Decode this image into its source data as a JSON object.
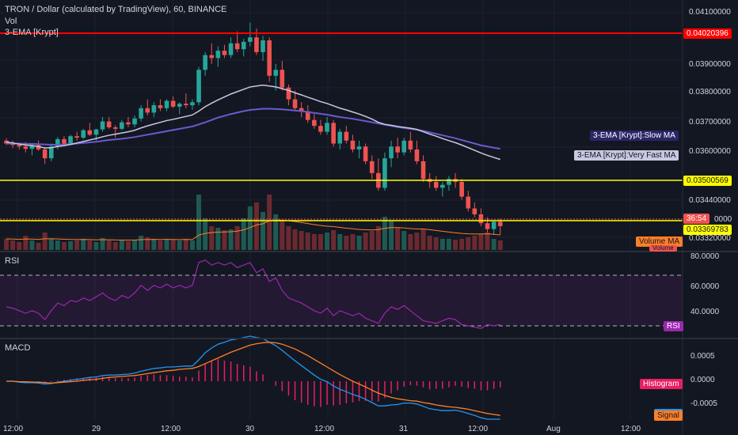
{
  "header": {
    "title": "TRON / Dollar (calculated by TradingView), 60, BINANCE",
    "vol_label": "Vol",
    "ema_label": "3-EMA [Krypt]"
  },
  "price_axis": {
    "ticks": [
      "0.04100000",
      "0.03900000",
      "0.03800000",
      "0.03700000",
      "0.03600000",
      "0.03440000",
      "0.03320000"
    ]
  },
  "price_tags": {
    "red_level": "0.04020396",
    "yellow_level": "0.03500569",
    "timer": "36:54",
    "last_price": "0.03369783",
    "price_partial": "0000"
  },
  "legend_tags": {
    "slow_ma": "3-EMA [Krypt]:Slow MA",
    "fast_ma": "3-EMA [Krypt]:Very Fast MA",
    "volume_ma": "Volume MA",
    "volume": "Volume"
  },
  "rsi": {
    "label": "RSI",
    "ticks": [
      "80.0000",
      "60.0000",
      "40.0000"
    ],
    "tag": "RSI"
  },
  "macd": {
    "label": "MACD",
    "ticks": [
      "0.0005",
      "0.0000",
      "-0.0005"
    ],
    "histogram_tag": "Histogram",
    "signal_tag": "Signal"
  },
  "time_axis": {
    "labels": [
      "12:00",
      "29",
      "12:00",
      "30",
      "12:00",
      "31",
      "12:00",
      "Aug",
      "12:00"
    ]
  },
  "colors": {
    "background": "#131722",
    "up": "#26a69a",
    "down": "#ef5350",
    "red_line": "#ff0000",
    "yellow_line": "#ffff00",
    "slow_ma": "#6a5acd",
    "fast_ma": "#c8c8e0",
    "rsi_line": "#9c27b0",
    "macd_line": "#2196f3",
    "signal_line": "#ff7f27",
    "hist": "#e91e63"
  },
  "chart_data": {
    "type": "candlestick",
    "symbol": "TRXUSD",
    "interval": "60",
    "price_range": [
      0.033,
      0.0411
    ],
    "levels": [
      0.04020396,
      0.03500569,
      0.03369783
    ],
    "candles": [
      [
        0.0366,
        0.03668,
        0.03645,
        0.0365
      ],
      [
        0.0365,
        0.0366,
        0.03635,
        0.03645
      ],
      [
        0.03645,
        0.03652,
        0.0363,
        0.0364
      ],
      [
        0.0364,
        0.03655,
        0.0362,
        0.03632
      ],
      [
        0.03632,
        0.0365,
        0.0361,
        0.03645
      ],
      [
        0.03645,
        0.0366,
        0.03625,
        0.0363
      ],
      [
        0.0363,
        0.03638,
        0.0358,
        0.036
      ],
      [
        0.036,
        0.0365,
        0.0359,
        0.0364
      ],
      [
        0.0364,
        0.03672,
        0.0363,
        0.03665
      ],
      [
        0.03665,
        0.03675,
        0.0364,
        0.0365
      ],
      [
        0.0365,
        0.0368,
        0.03645,
        0.03675
      ],
      [
        0.03675,
        0.0369,
        0.0366,
        0.0367
      ],
      [
        0.0367,
        0.037,
        0.03665,
        0.03695
      ],
      [
        0.03695,
        0.0372,
        0.03675,
        0.0368
      ],
      [
        0.0368,
        0.037,
        0.0366,
        0.03698
      ],
      [
        0.03698,
        0.0374,
        0.0369,
        0.03725
      ],
      [
        0.03725,
        0.0374,
        0.037,
        0.03705
      ],
      [
        0.03705,
        0.03712,
        0.0367,
        0.037
      ],
      [
        0.037,
        0.0373,
        0.03695,
        0.03722
      ],
      [
        0.03722,
        0.0374,
        0.03705,
        0.03715
      ],
      [
        0.03715,
        0.03745,
        0.03705,
        0.03735
      ],
      [
        0.03735,
        0.0378,
        0.03725,
        0.0377
      ],
      [
        0.0377,
        0.038,
        0.03745,
        0.03755
      ],
      [
        0.03755,
        0.0379,
        0.0374,
        0.0378
      ],
      [
        0.0378,
        0.038,
        0.0376,
        0.0377
      ],
      [
        0.0377,
        0.038,
        0.0376,
        0.03795
      ],
      [
        0.03795,
        0.0381,
        0.0377,
        0.03775
      ],
      [
        0.03775,
        0.0379,
        0.0375,
        0.03785
      ],
      [
        0.03785,
        0.0382,
        0.0377,
        0.0378
      ],
      [
        0.0378,
        0.038,
        0.03765,
        0.0379
      ],
      [
        0.0379,
        0.0391,
        0.0378,
        0.039
      ],
      [
        0.039,
        0.0396,
        0.0388,
        0.0395
      ],
      [
        0.0395,
        0.0399,
        0.0392,
        0.0394
      ],
      [
        0.0394,
        0.0398,
        0.0391,
        0.03965
      ],
      [
        0.03965,
        0.03985,
        0.0394,
        0.0395
      ],
      [
        0.0395,
        0.0401,
        0.0394,
        0.0399
      ],
      [
        0.0399,
        0.0403,
        0.0396,
        0.0397
      ],
      [
        0.0397,
        0.04005,
        0.03945,
        0.03995
      ],
      [
        0.03995,
        0.0406,
        0.0398,
        0.0401
      ],
      [
        0.0401,
        0.0404,
        0.0395,
        0.0396
      ],
      [
        0.0396,
        0.04015,
        0.0393,
        0.04
      ],
      [
        0.04,
        0.0401,
        0.0386,
        0.0388
      ],
      [
        0.0388,
        0.0392,
        0.0383,
        0.039
      ],
      [
        0.039,
        0.0393,
        0.0383,
        0.0384
      ],
      [
        0.0384,
        0.0385,
        0.0378,
        0.038
      ],
      [
        0.038,
        0.0383,
        0.0376,
        0.0377
      ],
      [
        0.0377,
        0.0379,
        0.0374,
        0.0376
      ],
      [
        0.0376,
        0.0378,
        0.0372,
        0.0373
      ],
      [
        0.0373,
        0.0375,
        0.037,
        0.0371
      ],
      [
        0.0371,
        0.0373,
        0.0368,
        0.0369
      ],
      [
        0.0369,
        0.0374,
        0.0368,
        0.0372
      ],
      [
        0.0372,
        0.0373,
        0.0364,
        0.0365
      ],
      [
        0.0365,
        0.037,
        0.0363,
        0.0369
      ],
      [
        0.0369,
        0.0371,
        0.0365,
        0.0366
      ],
      [
        0.0366,
        0.0368,
        0.0362,
        0.0363
      ],
      [
        0.0363,
        0.0366,
        0.036,
        0.0364
      ],
      [
        0.0364,
        0.0365,
        0.0358,
        0.0359
      ],
      [
        0.0359,
        0.0361,
        0.0353,
        0.0355
      ],
      [
        0.0355,
        0.036,
        0.0349,
        0.035
      ],
      [
        0.035,
        0.0362,
        0.0349,
        0.036
      ],
      [
        0.036,
        0.0366,
        0.0357,
        0.0364
      ],
      [
        0.0364,
        0.0367,
        0.036,
        0.0362
      ],
      [
        0.0362,
        0.0367,
        0.0361,
        0.0366
      ],
      [
        0.0366,
        0.0369,
        0.0362,
        0.0363
      ],
      [
        0.0363,
        0.0366,
        0.0358,
        0.0359
      ],
      [
        0.0359,
        0.0361,
        0.0352,
        0.0353
      ],
      [
        0.0353,
        0.0355,
        0.035,
        0.0352
      ],
      [
        0.0352,
        0.0354,
        0.0349,
        0.035
      ],
      [
        0.035,
        0.0352,
        0.0347,
        0.0351
      ],
      [
        0.0351,
        0.0354,
        0.0349,
        0.0353
      ],
      [
        0.0353,
        0.0355,
        0.035,
        0.0352
      ],
      [
        0.0352,
        0.0353,
        0.0346,
        0.0347
      ],
      [
        0.0347,
        0.0349,
        0.0342,
        0.0343
      ],
      [
        0.0343,
        0.0345,
        0.034,
        0.0341
      ],
      [
        0.0341,
        0.0343,
        0.0337,
        0.0338
      ],
      [
        0.0338,
        0.034,
        0.0334,
        0.0336
      ],
      [
        0.0336,
        0.0339,
        0.0334,
        0.03385
      ],
      [
        0.03385,
        0.03395,
        0.0334,
        0.0337
      ]
    ],
    "volume": [
      14,
      12,
      10,
      18,
      12,
      9,
      22,
      14,
      12,
      10,
      11,
      12,
      14,
      12,
      10,
      15,
      12,
      10,
      12,
      11,
      13,
      18,
      16,
      14,
      12,
      14,
      13,
      12,
      14,
      12,
      70,
      40,
      30,
      28,
      25,
      26,
      30,
      40,
      55,
      60,
      48,
      70,
      45,
      38,
      30,
      26,
      24,
      22,
      20,
      20,
      22,
      25,
      20,
      18,
      20,
      18,
      22,
      24,
      30,
      42,
      36,
      28,
      24,
      20,
      22,
      26,
      18,
      16,
      14,
      14,
      13,
      14,
      16,
      18,
      20,
      22,
      14,
      12
    ],
    "slow_ma": [
      0.0365,
      0.0365,
      0.0365,
      0.03649,
      0.03649,
      0.03648,
      0.03647,
      0.03646,
      0.03646,
      0.03647,
      0.03648,
      0.0365,
      0.03652,
      0.03654,
      0.03656,
      0.03659,
      0.03662,
      0.03664,
      0.03666,
      0.03669,
      0.03672,
      0.03676,
      0.0368,
      0.03684,
      0.03688,
      0.03692,
      0.03696,
      0.037,
      0.03704,
      0.03708,
      0.03715,
      0.03722,
      0.0373,
      0.03738,
      0.03744,
      0.0375,
      0.03755,
      0.0376,
      0.03764,
      0.03766,
      0.03768,
      0.03768,
      0.03767,
      0.03766,
      0.03764,
      0.03762,
      0.0376,
      0.03757,
      0.03754,
      0.03751,
      0.03748,
      0.03744,
      0.0374,
      0.03737,
      0.03734,
      0.0373,
      0.03726,
      0.03722,
      0.03718,
      0.03714,
      0.0371,
      0.03706,
      0.03703,
      0.037,
      0.03697,
      0.03693,
      0.03688,
      0.03683,
      0.03678,
      0.03673,
      0.03668,
      0.03662,
      0.03656,
      0.0365,
      0.03644,
      0.0364,
      0.03636,
      0.03632
    ],
    "fast_ma": [
      0.03655,
      0.03652,
      0.03648,
      0.03645,
      0.03643,
      0.0364,
      0.03635,
      0.03636,
      0.0364,
      0.03643,
      0.03647,
      0.03652,
      0.03657,
      0.03662,
      0.03667,
      0.03673,
      0.03678,
      0.03682,
      0.03686,
      0.0369,
      0.03695,
      0.03703,
      0.0371,
      0.03716,
      0.03722,
      0.03728,
      0.03732,
      0.03737,
      0.03742,
      0.03747,
      0.0376,
      0.03775,
      0.03787,
      0.03798,
      0.03808,
      0.03818,
      0.03826,
      0.03834,
      0.03842,
      0.03845,
      0.03848,
      0.03845,
      0.03842,
      0.03836,
      0.0383,
      0.03822,
      0.03815,
      0.03807,
      0.038,
      0.03792,
      0.03786,
      0.03778,
      0.0377,
      0.03764,
      0.03757,
      0.0375,
      0.03742,
      0.03733,
      0.03722,
      0.03715,
      0.03712,
      0.03708,
      0.03705,
      0.03702,
      0.03698,
      0.0369,
      0.03682,
      0.03675,
      0.03667,
      0.0366,
      0.03653,
      0.03645,
      0.03636,
      0.03627,
      0.03618,
      0.0361,
      0.03603,
      0.03596
    ],
    "rsi": [
      45,
      44,
      42,
      40,
      42,
      40,
      35,
      42,
      48,
      46,
      50,
      49,
      52,
      50,
      53,
      56,
      52,
      50,
      54,
      52,
      56,
      62,
      58,
      62,
      60,
      63,
      60,
      62,
      60,
      62,
      80,
      82,
      78,
      80,
      78,
      80,
      76,
      78,
      80,
      72,
      75,
      65,
      68,
      58,
      52,
      50,
      48,
      45,
      42,
      40,
      44,
      38,
      42,
      40,
      38,
      40,
      36,
      34,
      32,
      40,
      45,
      43,
      46,
      42,
      38,
      34,
      33,
      32,
      34,
      36,
      35,
      31,
      30,
      29,
      28,
      31,
      30,
      31
    ],
    "macd": [
      0.0,
      0.0,
      -2e-05,
      -3e-05,
      -3e-05,
      -4e-05,
      -6e-05,
      -5e-05,
      -2e-05,
      0.0,
      2e-05,
      4e-05,
      6e-05,
      8e-05,
      9e-05,
      0.00012,
      0.00013,
      0.00013,
      0.00014,
      0.00015,
      0.00017,
      0.00021,
      0.00024,
      0.00027,
      0.00028,
      0.0003,
      0.0003,
      0.00031,
      0.00032,
      0.00032,
      0.00045,
      0.0006,
      0.0007,
      0.00078,
      0.00082,
      0.00087,
      0.00089,
      0.00092,
      0.00095,
      0.00092,
      0.0009,
      0.00082,
      0.00075,
      0.00065,
      0.00054,
      0.00043,
      0.00033,
      0.00023,
      0.00013,
      4e-05,
      -1e-05,
      -0.0001,
      -0.00017,
      -0.00022,
      -0.00028,
      -0.00032,
      -0.00038,
      -0.00045,
      -0.00052,
      -0.00052,
      -0.0005,
      -0.00049,
      -0.00046,
      -0.00046,
      -0.00048,
      -0.00053,
      -0.00058,
      -0.0006,
      -0.00062,
      -0.00062,
      -0.00061,
      -0.00064,
      -0.00068,
      -0.00072,
      -0.00077,
      -0.0008,
      -0.0008,
      -0.0008
    ],
    "signal": [
      0.0,
      0.0,
      -1e-05,
      -1e-05,
      -2e-05,
      -2e-05,
      -3e-05,
      -4e-05,
      -3e-05,
      -2e-05,
      -1e-05,
      0.0,
      2e-05,
      3e-05,
      4e-05,
      6e-05,
      8e-05,
      9e-05,
      0.0001,
      0.00011,
      0.00012,
      0.00014,
      0.00016,
      0.00018,
      0.0002,
      0.00022,
      0.00023,
      0.00025,
      0.00026,
      0.00027,
      0.00031,
      0.00037,
      0.00043,
      0.00049,
      0.00055,
      0.00061,
      0.00066,
      0.00071,
      0.00076,
      0.00079,
      0.00081,
      0.00082,
      0.00081,
      0.00078,
      0.00073,
      0.00068,
      0.00061,
      0.00054,
      0.00046,
      0.00038,
      0.0003,
      0.00022,
      0.00014,
      7e-05,
      0.0,
      -6e-05,
      -0.00012,
      -0.00019,
      -0.00025,
      -0.0003,
      -0.00034,
      -0.00037,
      -0.00039,
      -0.00041,
      -0.00042,
      -0.00045,
      -0.00047,
      -0.0005,
      -0.00052,
      -0.00054,
      -0.00055,
      -0.00057,
      -0.00059,
      -0.00062,
      -0.00065,
      -0.00068,
      -0.0007,
      -0.00072
    ]
  }
}
